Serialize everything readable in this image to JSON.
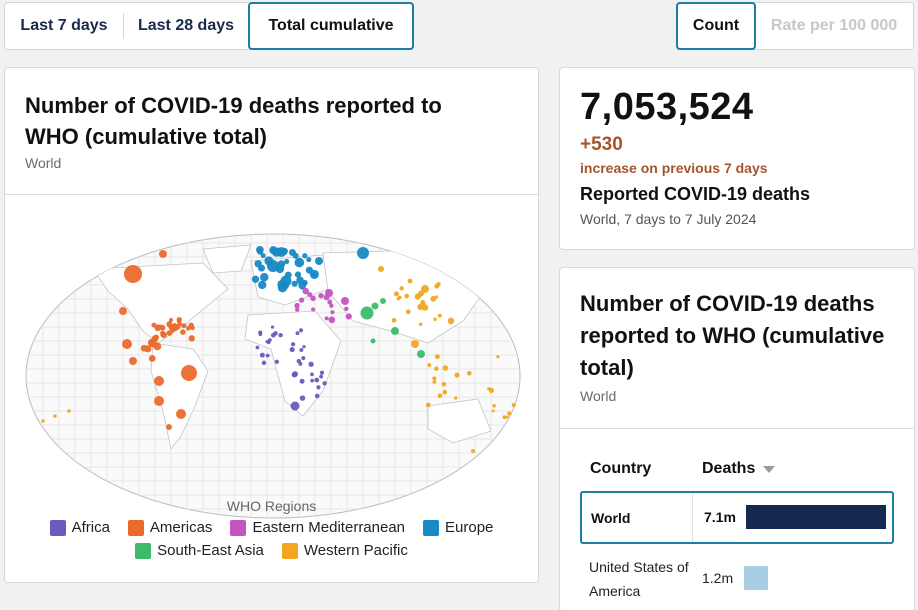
{
  "period_tabs": [
    {
      "label": "Last 7 days",
      "active": false
    },
    {
      "label": "Last 28 days",
      "active": false
    },
    {
      "label": "Total cumulative",
      "active": true
    }
  ],
  "metric_tabs": [
    {
      "label": "Count",
      "active": true
    },
    {
      "label": "Rate per 100 000",
      "active": false,
      "disabled": true
    }
  ],
  "map_card": {
    "title": "Number of COVID-19 deaths reported to WHO (cumulative total)",
    "subtitle": "World",
    "legend": {
      "title": "WHO Regions",
      "items": [
        {
          "label": "Africa",
          "color": "#6a5bbd"
        },
        {
          "label": "Americas",
          "color": "#ec6a2c"
        },
        {
          "label": "Eastern Mediterranean",
          "color": "#c453c4"
        },
        {
          "label": "Europe",
          "color": "#1889c4"
        },
        {
          "label": "South-East Asia",
          "color": "#3dbb6b"
        },
        {
          "label": "Western Pacific",
          "color": "#f2a623"
        }
      ]
    }
  },
  "stat_card": {
    "value": "7,053,524",
    "increase": "+530",
    "increase_label": "increase on previous 7 days",
    "label": "Reported COVID-19 deaths",
    "range": "World, 7 days to 7 July 2024"
  },
  "table_card": {
    "title": "Number of COVID-19 deaths reported to WHO (cumulative total)",
    "subtitle": "World",
    "headers": {
      "country": "Country",
      "deaths": "Deaths"
    },
    "rows": [
      {
        "country": "World",
        "value": "7.1m",
        "deaths_millions": 7.05,
        "highlighted": true
      },
      {
        "country": "United States of America",
        "value": "1.2m",
        "deaths_millions": 1.2,
        "highlighted": false
      }
    ],
    "bar_colors": {
      "world": "#13294f",
      "other": "#a9cde3"
    }
  }
}
